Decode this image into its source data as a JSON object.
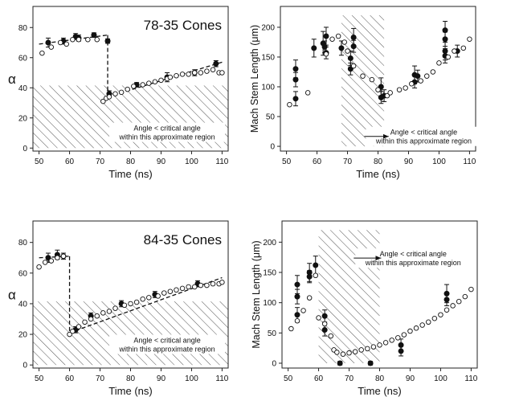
{
  "figure": {
    "shade_note_line1": "Angle < critical angle",
    "shade_note_line2": "within this approximate region"
  },
  "chart_data": [
    {
      "type": "scatter",
      "title": "78-35 Cones",
      "xlabel": "Time (ns)",
      "ylabel": "α",
      "xlim": [
        48,
        112
      ],
      "ylim": [
        -2,
        94
      ],
      "xticks": [
        50,
        60,
        70,
        80,
        90,
        100,
        110
      ],
      "yticks": [
        0,
        20,
        40,
        60,
        80
      ],
      "shaded_region": {
        "x": [
          48,
          112
        ],
        "y": [
          0,
          41.5
        ]
      },
      "annotation": {
        "text": "Angle < critical angle within this approximate region",
        "x": 92,
        "y": 11
      },
      "series": [
        {
          "name": "filled",
          "marker": "filled-circle",
          "x": [
            53,
            58,
            62,
            63,
            68,
            72.5,
            73,
            82,
            92,
            101,
            108
          ],
          "y": [
            70,
            71,
            74,
            73,
            75,
            71,
            36,
            42,
            47,
            50,
            56
          ],
          "err": [
            3,
            2,
            2,
            2,
            1.5,
            1.5,
            2,
            1.5,
            3,
            2,
            2
          ]
        },
        {
          "name": "open",
          "marker": "open-circle",
          "x": [
            51,
            54,
            57,
            59,
            61,
            63,
            66,
            69,
            71,
            72,
            73,
            75,
            77,
            79,
            81,
            84,
            86,
            88,
            90,
            92,
            93,
            95,
            97,
            99,
            101,
            103,
            105,
            107,
            109,
            110
          ],
          "y": [
            63,
            67,
            70,
            69,
            72,
            72,
            72,
            72,
            31,
            33,
            34,
            36,
            37,
            39,
            41,
            42,
            43,
            44,
            45,
            46,
            47,
            48,
            49,
            49,
            50,
            50,
            51,
            52,
            50,
            50
          ]
        }
      ],
      "fit_lines": [
        {
          "x": [
            50,
            72.5
          ],
          "y": [
            69,
            75
          ]
        },
        {
          "x": [
            72.5,
            72.5
          ],
          "y": [
            75,
            34
          ]
        },
        {
          "x": [
            72.5,
            110
          ],
          "y": [
            34,
            57
          ]
        }
      ]
    },
    {
      "type": "scatter",
      "xlabel": "Time (ns)",
      "ylabel": "Mach Stem Length (μm)",
      "xlim": [
        48,
        112
      ],
      "ylim": [
        -8,
        235
      ],
      "xticks": [
        50,
        60,
        70,
        80,
        90,
        100,
        110
      ],
      "yticks": [
        0,
        50,
        100,
        150,
        200
      ],
      "shaded_region": {
        "x": [
          68,
          82
        ],
        "y": [
          0,
          220
        ]
      },
      "annotation": {
        "text": "Angle < critical angle within this approximate region",
        "x": 95,
        "y": 18,
        "arrow_to": {
          "x": 83.5,
          "y": 18
        }
      },
      "series": [
        {
          "name": "filled",
          "marker": "filled-circle",
          "x": [
            53,
            53,
            53,
            59,
            62,
            62.5,
            63,
            63,
            68,
            71,
            71,
            72,
            72,
            81,
            81,
            82,
            92,
            92,
            93,
            102,
            102,
            102,
            102,
            106
          ],
          "y": [
            130,
            112,
            80,
            165,
            173,
            167,
            185,
            157,
            165,
            148,
            130,
            183,
            168,
            100,
            82,
            85,
            120,
            108,
            118,
            195,
            180,
            160,
            152,
            160
          ],
          "err": [
            15,
            12,
            12,
            15,
            20,
            10,
            15,
            10,
            12,
            12,
            10,
            15,
            10,
            15,
            10,
            10,
            15,
            10,
            10,
            15,
            12,
            15,
            12,
            10
          ]
        },
        {
          "name": "open",
          "marker": "open-circle",
          "x": [
            51,
            57,
            63,
            65,
            67,
            69,
            70,
            72,
            75,
            78,
            80,
            83,
            84,
            87,
            89,
            91,
            94,
            96,
            98,
            100,
            103,
            105,
            108,
            110
          ],
          "y": [
            70,
            90,
            155,
            180,
            185,
            175,
            160,
            135,
            118,
            112,
            95,
            85,
            90,
            95,
            98,
            105,
            110,
            118,
            125,
            140,
            150,
            160,
            165,
            180
          ]
        }
      ]
    },
    {
      "type": "scatter",
      "title": "84-35 Cones",
      "xlabel": "Time (ns)",
      "ylabel": "α",
      "xlim": [
        48,
        112
      ],
      "ylim": [
        -2,
        94
      ],
      "xticks": [
        50,
        60,
        70,
        80,
        90,
        100,
        110
      ],
      "yticks": [
        0,
        20,
        40,
        60,
        80
      ],
      "shaded_region": {
        "x": [
          48,
          112
        ],
        "y": [
          0,
          41.5
        ]
      },
      "annotation": {
        "text": "Angle < critical angle within this approximate region",
        "x": 92,
        "y": 14
      },
      "series": [
        {
          "name": "filled",
          "marker": "filled-circle",
          "x": [
            53,
            56,
            58,
            62,
            67,
            77,
            88,
            102
          ],
          "y": [
            70,
            72,
            71,
            23,
            32,
            40,
            46,
            53
          ],
          "err": [
            3,
            3,
            2,
            2,
            2,
            2,
            2,
            2
          ]
        },
        {
          "name": "open",
          "marker": "open-circle",
          "x": [
            50,
            52,
            54,
            56,
            58,
            60,
            61,
            63,
            65,
            67,
            69,
            71,
            73,
            75,
            78,
            80,
            82,
            84,
            86,
            89,
            91,
            93,
            95,
            97,
            99,
            101,
            103,
            105,
            107,
            109,
            110
          ],
          "y": [
            64,
            67,
            68,
            70,
            71,
            20,
            22,
            25,
            28,
            30,
            32,
            34,
            35,
            37,
            39,
            40,
            41,
            43,
            44,
            45,
            47,
            48,
            49,
            50,
            51,
            51,
            52,
            52,
            53,
            53,
            54
          ]
        }
      ],
      "fit_lines": [
        {
          "x": [
            50,
            60
          ],
          "y": [
            70,
            71
          ]
        },
        {
          "x": [
            60,
            60
          ],
          "y": [
            71,
            21
          ]
        },
        {
          "x": [
            60,
            110
          ],
          "y": [
            21,
            57
          ]
        }
      ]
    },
    {
      "type": "scatter",
      "xlabel": "Time (ns)",
      "ylabel": "Mach Stem Length (μm)",
      "xlim": [
        48,
        112
      ],
      "ylim": [
        -8,
        235
      ],
      "xticks": [
        50,
        60,
        70,
        80,
        90,
        100,
        110
      ],
      "yticks": [
        0,
        50,
        100,
        150,
        200
      ],
      "shaded_region": {
        "x": [
          60,
          80
        ],
        "y": [
          0,
          220
        ]
      },
      "annotation": {
        "text": "Angle < critical angle within this approximate region",
        "x": 91,
        "y": 175,
        "arrow_to": {
          "x": 80.5,
          "y": 175
        }
      },
      "series": [
        {
          "name": "filled",
          "marker": "filled-circle",
          "x": [
            53,
            53,
            53,
            57,
            57,
            59,
            62,
            62,
            67,
            77,
            87,
            87,
            102,
            102
          ],
          "y": [
            130,
            110,
            80,
            150,
            143,
            162,
            78,
            55,
            0,
            0,
            30,
            20,
            115,
            105
          ],
          "err": [
            15,
            12,
            12,
            15,
            10,
            15,
            10,
            10,
            3,
            3,
            10,
            8,
            15,
            10
          ]
        },
        {
          "name": "open",
          "marker": "open-circle",
          "x": [
            51,
            53,
            55,
            57,
            59,
            60,
            62,
            64,
            65,
            66,
            68,
            70,
            72,
            74,
            76,
            78,
            80,
            82,
            84,
            86,
            88,
            90,
            92,
            94,
            96,
            98,
            100,
            102,
            104,
            106,
            108,
            110
          ],
          "y": [
            57,
            70,
            87,
            108,
            145,
            75,
            65,
            45,
            22,
            18,
            15,
            17,
            19,
            22,
            24,
            27,
            30,
            34,
            38,
            42,
            47,
            53,
            58,
            63,
            68,
            74,
            80,
            88,
            95,
            102,
            110,
            122
          ]
        }
      ]
    }
  ]
}
